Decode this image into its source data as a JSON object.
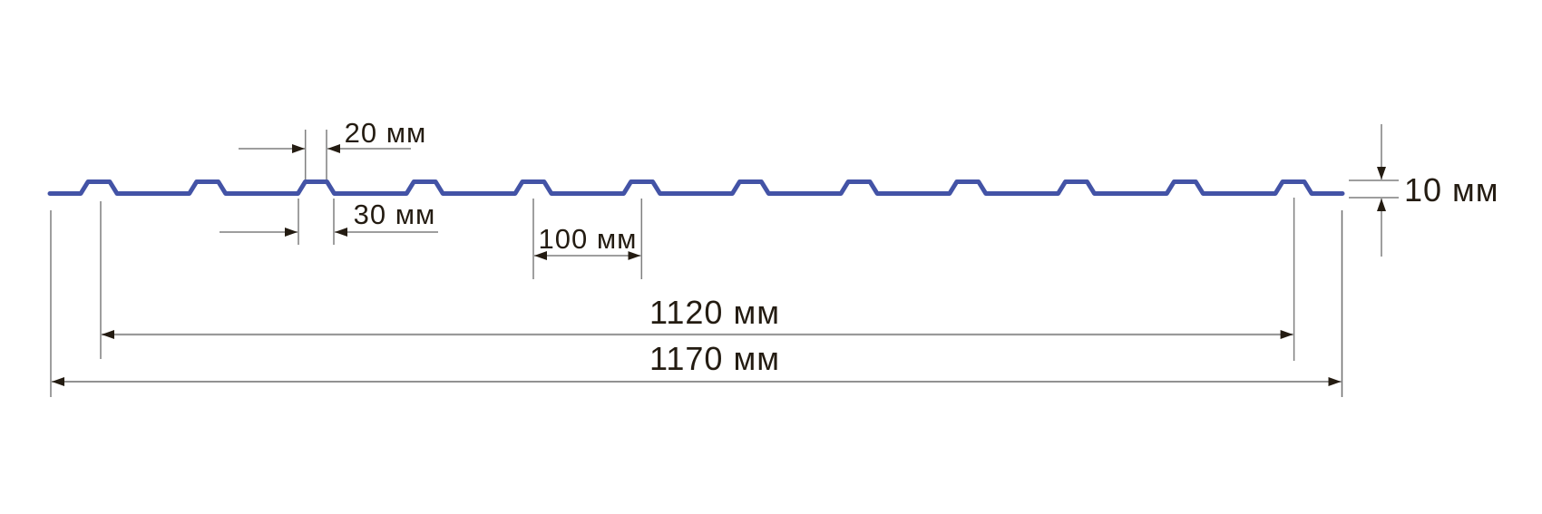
{
  "diagram": {
    "type": "profiled-sheet-cross-section",
    "rib_count": 12,
    "units": "мм",
    "colors": {
      "profile_blue": "#4353a6",
      "dim_line_gray": "#7f7f7f",
      "dim_line_light_gray": "#9a9a9a",
      "dim_line_dark_gray": "#6f6f6f",
      "arrow_dark": "#241c12",
      "text_dark": "#241c12"
    },
    "dimensions": {
      "rib_top_width": {
        "label": "20 мм",
        "value_mm": 20
      },
      "rib_base_width": {
        "label": "30 мм",
        "value_mm": 30
      },
      "rib_pitch": {
        "label": "100 мм",
        "value_mm": 100
      },
      "working_width": {
        "label": "1120 мм",
        "value_mm": 1120
      },
      "overall_width": {
        "label": "1170 мм",
        "value_mm": 1170
      },
      "profile_height": {
        "label": "10 мм",
        "value_mm": 10
      }
    }
  }
}
